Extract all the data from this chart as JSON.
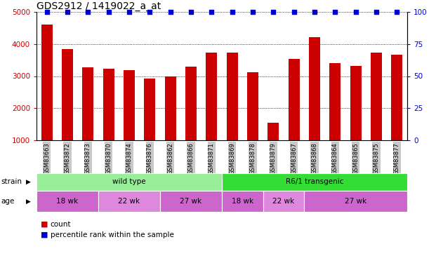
{
  "title": "GDS2912 / 1419022_a_at",
  "samples": [
    "GSM83663",
    "GSM83872",
    "GSM83873",
    "GSM83870",
    "GSM83874",
    "GSM83876",
    "GSM83862",
    "GSM83866",
    "GSM83871",
    "GSM83869",
    "GSM83878",
    "GSM83879",
    "GSM83867",
    "GSM83868",
    "GSM83864",
    "GSM83865",
    "GSM83875",
    "GSM83877"
  ],
  "counts": [
    4600,
    3850,
    3270,
    3220,
    3190,
    2920,
    3000,
    3300,
    3730,
    3730,
    3130,
    1540,
    3540,
    4210,
    3400,
    3310,
    3730,
    3670
  ],
  "percentile": [
    100,
    100,
    100,
    100,
    100,
    100,
    100,
    100,
    100,
    100,
    100,
    100,
    100,
    100,
    100,
    100,
    100,
    100
  ],
  "bar_color": "#cc0000",
  "percentile_color": "#0000cc",
  "ylim_left": [
    1000,
    5000
  ],
  "ylim_right": [
    0,
    100
  ],
  "yticks_left": [
    1000,
    2000,
    3000,
    4000,
    5000
  ],
  "yticks_right": [
    0,
    25,
    50,
    75,
    100
  ],
  "title_fontsize": 10,
  "axis_label_color_left": "#cc0000",
  "axis_label_color_right": "#0000cc",
  "strain_groups": [
    {
      "label": "wild type",
      "start": 0,
      "end": 9,
      "color": "#99ee99"
    },
    {
      "label": "R6/1 transgenic",
      "start": 9,
      "end": 18,
      "color": "#33dd33"
    }
  ],
  "age_groups": [
    {
      "label": "18 wk",
      "start": 0,
      "end": 3,
      "color": "#cc66cc"
    },
    {
      "label": "22 wk",
      "start": 3,
      "end": 6,
      "color": "#dd88dd"
    },
    {
      "label": "27 wk",
      "start": 6,
      "end": 9,
      "color": "#cc66cc"
    },
    {
      "label": "18 wk",
      "start": 9,
      "end": 11,
      "color": "#cc66cc"
    },
    {
      "label": "22 wk",
      "start": 11,
      "end": 13,
      "color": "#dd88dd"
    },
    {
      "label": "27 wk",
      "start": 13,
      "end": 18,
      "color": "#cc66cc"
    }
  ],
  "legend_items": [
    {
      "label": "count",
      "color": "#cc0000"
    },
    {
      "label": "percentile rank within the sample",
      "color": "#0000cc"
    }
  ],
  "xtick_bg_color": "#c8c8c8"
}
